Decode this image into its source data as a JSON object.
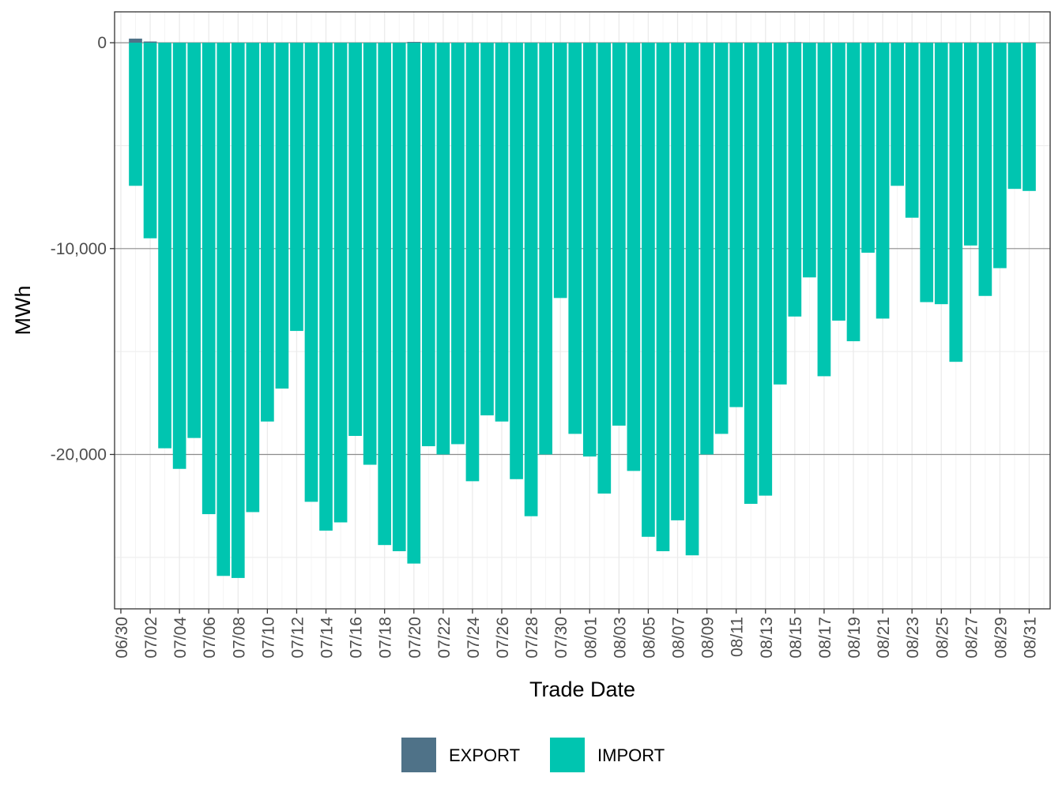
{
  "chart_data": {
    "type": "bar",
    "stacked": true,
    "title": "",
    "xlabel": "Trade Date",
    "ylabel": "MWh",
    "ylim": [
      -27500,
      1500
    ],
    "y_ticks": [
      0,
      -10000,
      -20000
    ],
    "y_tick_labels": [
      "0",
      "-10,000",
      "-20,000"
    ],
    "x_tick_labels": [
      "06/30",
      "07/02",
      "07/04",
      "07/06",
      "07/08",
      "07/10",
      "07/12",
      "07/14",
      "07/16",
      "07/18",
      "07/20",
      "07/22",
      "07/24",
      "07/26",
      "07/28",
      "07/30",
      "08/01",
      "08/03",
      "08/05",
      "08/07",
      "08/09",
      "08/11",
      "08/13",
      "08/15",
      "08/17",
      "08/19",
      "08/21",
      "08/23",
      "08/25",
      "08/27",
      "08/29",
      "08/31"
    ],
    "grid": true,
    "legend": "bottom",
    "categories": [
      "07/01",
      "07/02",
      "07/03",
      "07/04",
      "07/05",
      "07/06",
      "07/07",
      "07/08",
      "07/09",
      "07/10",
      "07/11",
      "07/12",
      "07/13",
      "07/14",
      "07/15",
      "07/16",
      "07/17",
      "07/18",
      "07/19",
      "07/20",
      "07/21",
      "07/22",
      "07/23",
      "07/24",
      "07/25",
      "07/26",
      "07/27",
      "07/28",
      "07/29",
      "07/30",
      "07/31",
      "08/01",
      "08/02",
      "08/03",
      "08/04",
      "08/05",
      "08/06",
      "08/07",
      "08/08",
      "08/09",
      "08/10",
      "08/11",
      "08/12",
      "08/13",
      "08/14",
      "08/15",
      "08/16",
      "08/17",
      "08/18",
      "08/19",
      "08/20",
      "08/21",
      "08/22",
      "08/23",
      "08/24",
      "08/25",
      "08/26",
      "08/27",
      "08/28",
      "08/29",
      "08/30",
      "08/31"
    ],
    "series": [
      {
        "name": "EXPORT",
        "color": "#4f7288",
        "values": [
          200,
          60,
          0,
          0,
          0,
          0,
          0,
          0,
          0,
          0,
          0,
          0,
          0,
          0,
          0,
          0,
          0,
          0,
          0,
          40,
          0,
          0,
          0,
          0,
          0,
          0,
          0,
          0,
          0,
          0,
          0,
          0,
          0,
          0,
          0,
          0,
          0,
          0,
          0,
          0,
          0,
          0,
          0,
          0,
          0,
          30,
          0,
          0,
          0,
          0,
          0,
          0,
          0,
          0,
          0,
          0,
          0,
          0,
          0,
          0,
          0,
          0
        ]
      },
      {
        "name": "IMPORT",
        "color": "#00c5b0",
        "values": [
          -6950,
          -9500,
          -19700,
          -20700,
          -19200,
          -22900,
          -25900,
          -26000,
          -22800,
          -18400,
          -16800,
          -14000,
          -22300,
          -23700,
          -23300,
          -19100,
          -20500,
          -24400,
          -24700,
          -25300,
          -19600,
          -20000,
          -19500,
          -21300,
          -18100,
          -18400,
          -21200,
          -23000,
          -20000,
          -12400,
          -19000,
          -20100,
          -21900,
          -18600,
          -20800,
          -24000,
          -24700,
          -23200,
          -24900,
          -20000,
          -19000,
          -17700,
          -22400,
          -22000,
          -16600,
          -13300,
          -11400,
          -16200,
          -13500,
          -14500,
          -10200,
          -13400,
          -6950,
          -8500,
          -12600,
          -12700,
          -15500,
          -9850,
          -12300,
          -10950,
          -7100,
          -7200
        ]
      }
    ]
  }
}
